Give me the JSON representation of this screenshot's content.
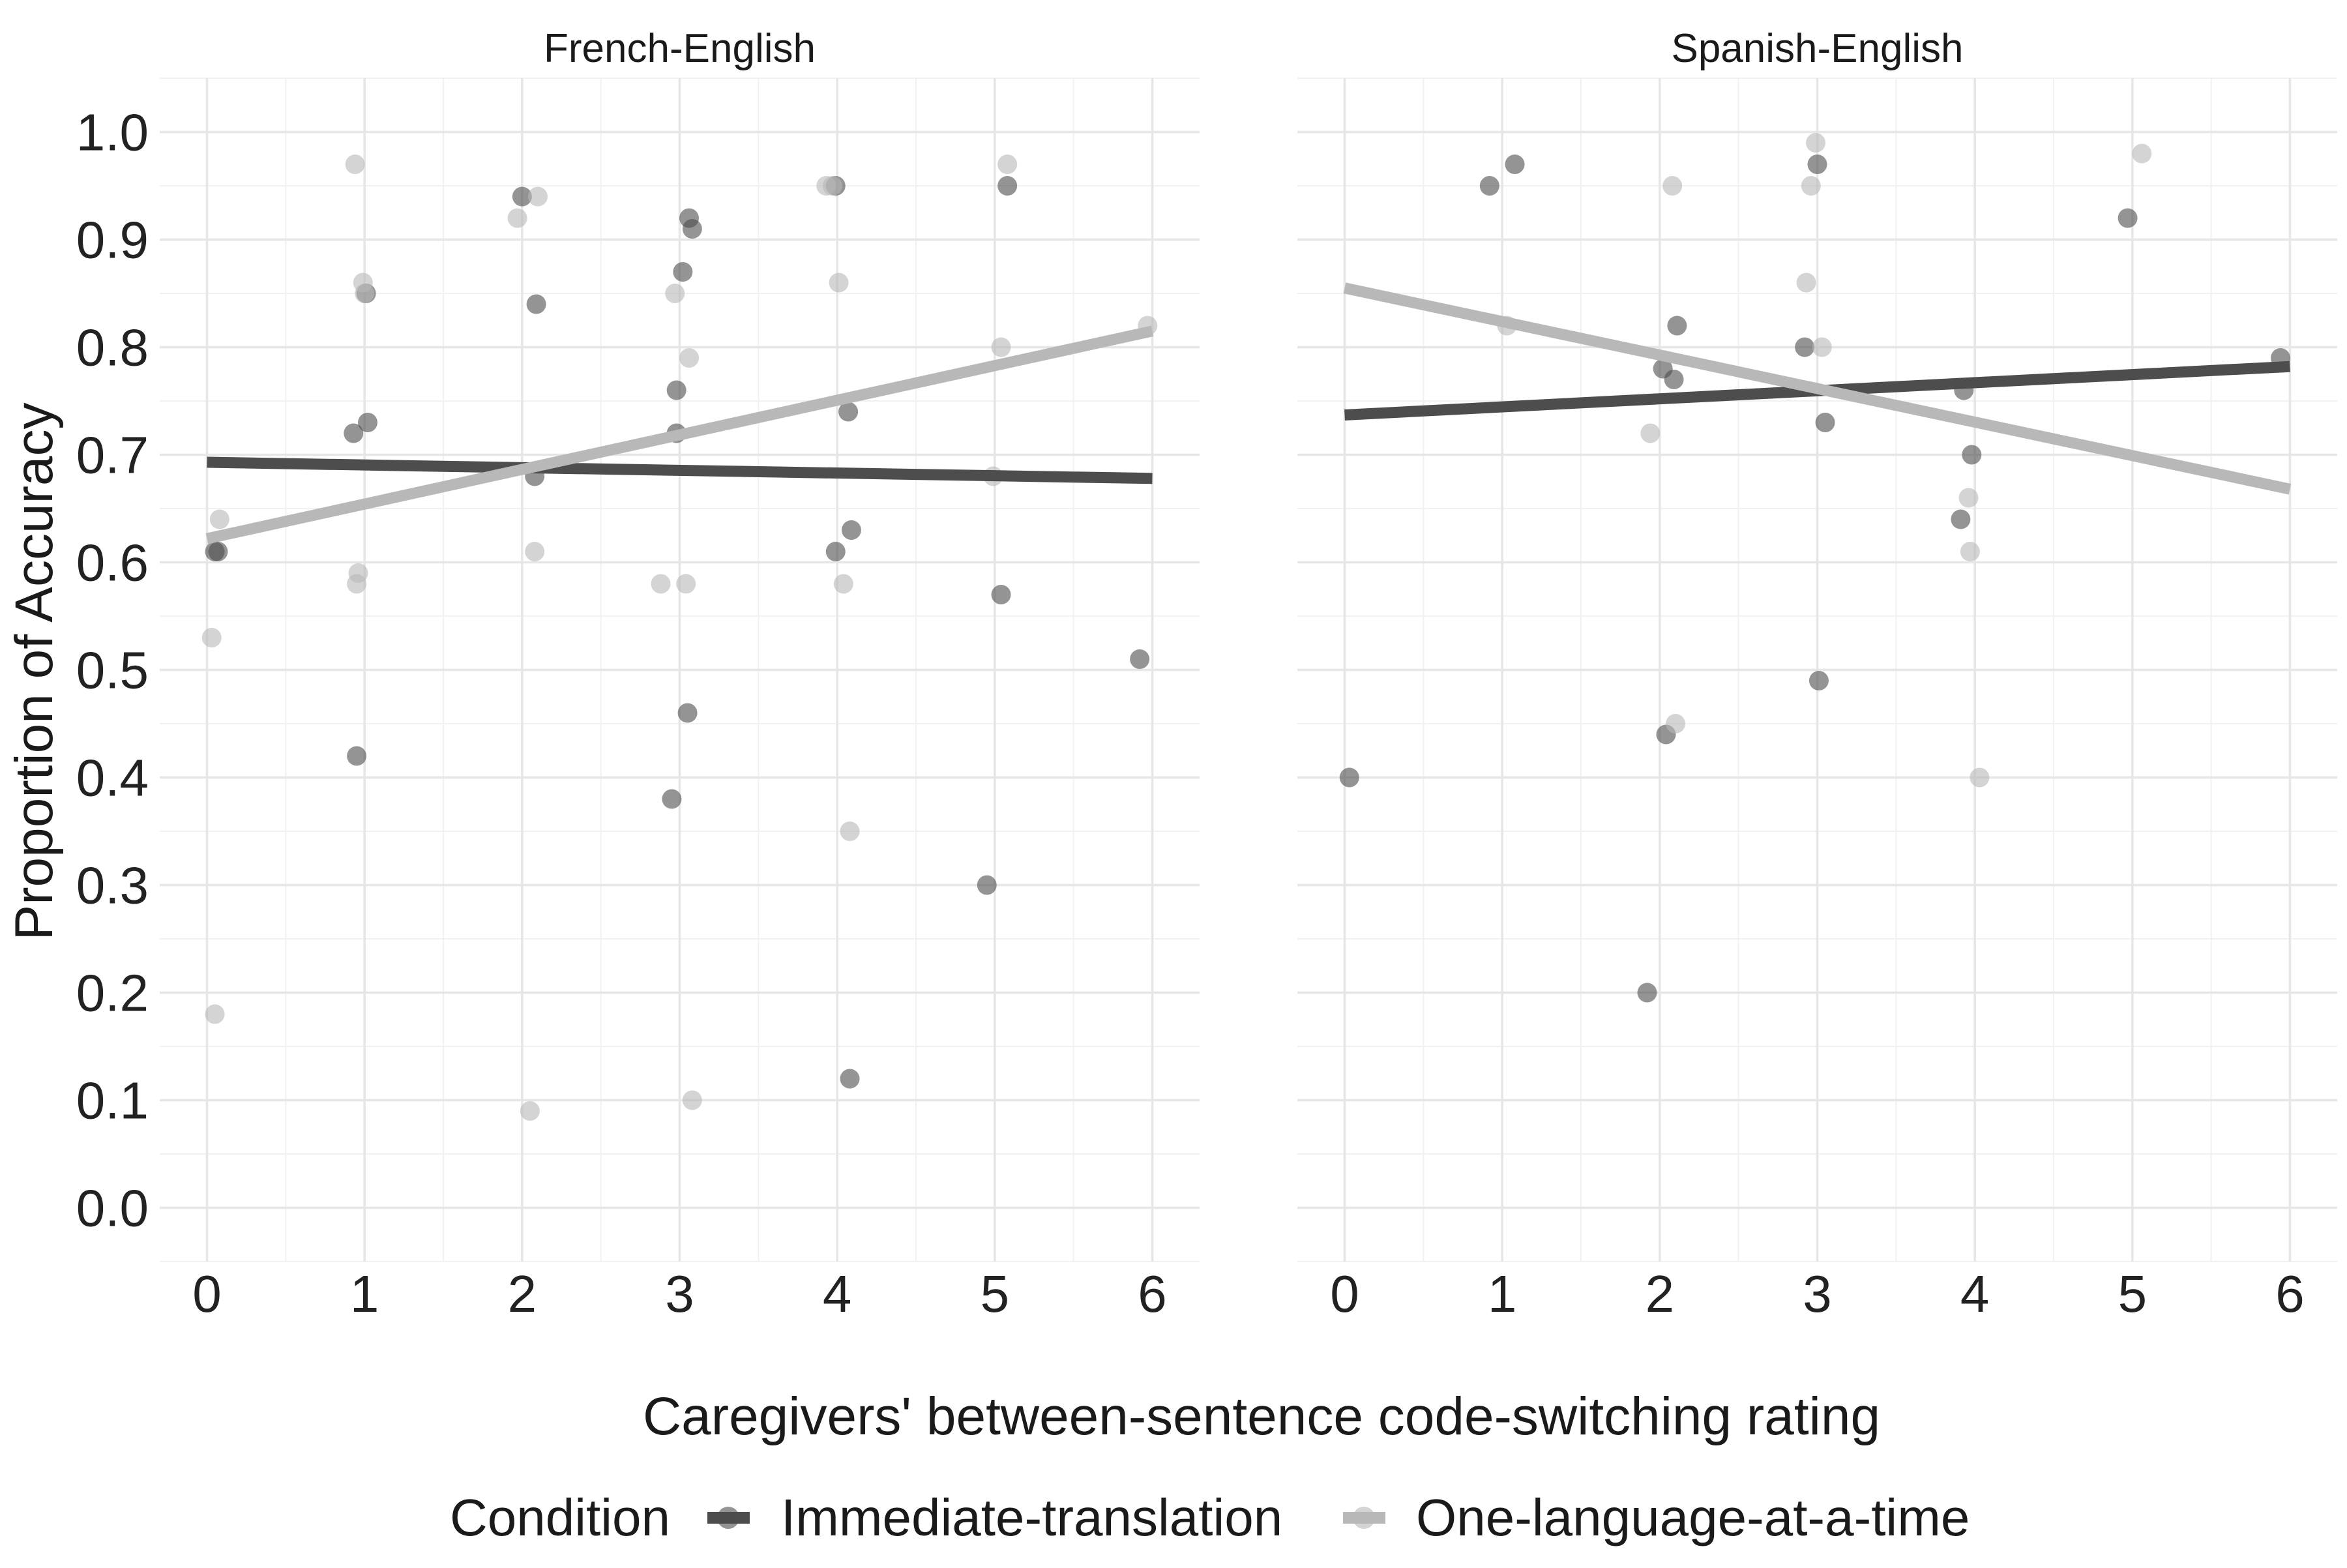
{
  "chart_data": {
    "type": "scatter",
    "xlabel": "Caregivers' between-sentence code-switching rating",
    "ylabel": "Proportion of Accuracy",
    "xlim": [
      -0.3,
      6.3
    ],
    "ylim": [
      -0.05,
      1.05
    ],
    "x_ticks": [
      "0",
      "1",
      "2",
      "3",
      "4",
      "5",
      "6"
    ],
    "y_ticks": [
      "0.0",
      "0.1",
      "0.2",
      "0.3",
      "0.4",
      "0.5",
      "0.6",
      "0.7",
      "0.8",
      "0.9",
      "1.0"
    ],
    "grid": true,
    "legend": {
      "title": "Condition",
      "position": "bottom",
      "entries": [
        {
          "label": "Immediate-translation",
          "color": "#4d4d4d"
        },
        {
          "label": "One-language-at-a-time",
          "color": "#b8b8b8"
        }
      ]
    },
    "panels": [
      {
        "title": "French-English",
        "series": [
          {
            "name": "Immediate-translation",
            "color": "#4d4d4d",
            "points": [
              [
                0.07,
                0.61
              ],
              [
                0.05,
                0.61
              ],
              [
                0.93,
                0.72
              ],
              [
                0.95,
                0.42
              ],
              [
                1.01,
                0.85
              ],
              [
                1.02,
                0.73
              ],
              [
                2.0,
                0.94
              ],
              [
                2.08,
                0.68
              ],
              [
                2.09,
                0.84
              ],
              [
                2.95,
                0.38
              ],
              [
                2.98,
                0.76
              ],
              [
                2.98,
                0.72
              ],
              [
                3.02,
                0.87
              ],
              [
                3.05,
                0.46
              ],
              [
                3.06,
                0.92
              ],
              [
                3.08,
                0.91
              ],
              [
                3.99,
                0.61
              ],
              [
                3.99,
                0.95
              ],
              [
                4.07,
                0.74
              ],
              [
                4.08,
                0.12
              ],
              [
                4.09,
                0.63
              ],
              [
                4.95,
                0.3
              ],
              [
                5.04,
                0.57
              ],
              [
                5.08,
                0.95
              ],
              [
                5.92,
                0.51
              ]
            ],
            "trend": [
              [
                0,
                0.693
              ],
              [
                6,
                0.678
              ]
            ]
          },
          {
            "name": "One-language-at-a-time",
            "color": "#b8b8b8",
            "points": [
              [
                0.03,
                0.53
              ],
              [
                0.05,
                0.18
              ],
              [
                0.08,
                0.64
              ],
              [
                0.94,
                0.97
              ],
              [
                0.95,
                0.58
              ],
              [
                0.96,
                0.59
              ],
              [
                0.99,
                0.86
              ],
              [
                1.0,
                0.85
              ],
              [
                1.97,
                0.92
              ],
              [
                2.05,
                0.09
              ],
              [
                2.08,
                0.61
              ],
              [
                2.1,
                0.94
              ],
              [
                2.88,
                0.58
              ],
              [
                2.97,
                0.85
              ],
              [
                3.04,
                0.58
              ],
              [
                3.06,
                0.79
              ],
              [
                3.08,
                0.1
              ],
              [
                3.93,
                0.95
              ],
              [
                3.97,
                0.95
              ],
              [
                4.01,
                0.86
              ],
              [
                4.04,
                0.58
              ],
              [
                4.08,
                0.35
              ],
              [
                4.99,
                0.68
              ],
              [
                5.04,
                0.8
              ],
              [
                5.08,
                0.97
              ],
              [
                5.97,
                0.82
              ]
            ],
            "trend": [
              [
                0,
                0.622
              ],
              [
                6,
                0.815
              ]
            ]
          }
        ]
      },
      {
        "title": "Spanish-English",
        "series": [
          {
            "name": "Immediate-translation",
            "color": "#4d4d4d",
            "points": [
              [
                0.03,
                0.4
              ],
              [
                0.92,
                0.95
              ],
              [
                1.08,
                0.97
              ],
              [
                1.92,
                0.2
              ],
              [
                2.02,
                0.78
              ],
              [
                2.04,
                0.44
              ],
              [
                2.09,
                0.77
              ],
              [
                2.11,
                0.82
              ],
              [
                2.92,
                0.8
              ],
              [
                3.0,
                0.97
              ],
              [
                3.01,
                0.49
              ],
              [
                3.05,
                0.73
              ],
              [
                3.91,
                0.64
              ],
              [
                3.93,
                0.76
              ],
              [
                3.98,
                0.7
              ],
              [
                4.97,
                0.92
              ],
              [
                5.94,
                0.79
              ]
            ],
            "trend": [
              [
                0,
                0.737
              ],
              [
                6,
                0.782
              ]
            ]
          },
          {
            "name": "One-language-at-a-time",
            "color": "#b8b8b8",
            "points": [
              [
                1.03,
                0.82
              ],
              [
                1.94,
                0.72
              ],
              [
                2.08,
                0.95
              ],
              [
                2.1,
                0.45
              ],
              [
                2.93,
                0.86
              ],
              [
                2.96,
                0.95
              ],
              [
                2.99,
                0.99
              ],
              [
                3.03,
                0.8
              ],
              [
                3.96,
                0.66
              ],
              [
                3.97,
                0.61
              ],
              [
                4.03,
                0.4
              ],
              [
                5.06,
                0.98
              ]
            ],
            "trend": [
              [
                0,
                0.855
              ],
              [
                6,
                0.668
              ]
            ]
          }
        ]
      }
    ]
  }
}
